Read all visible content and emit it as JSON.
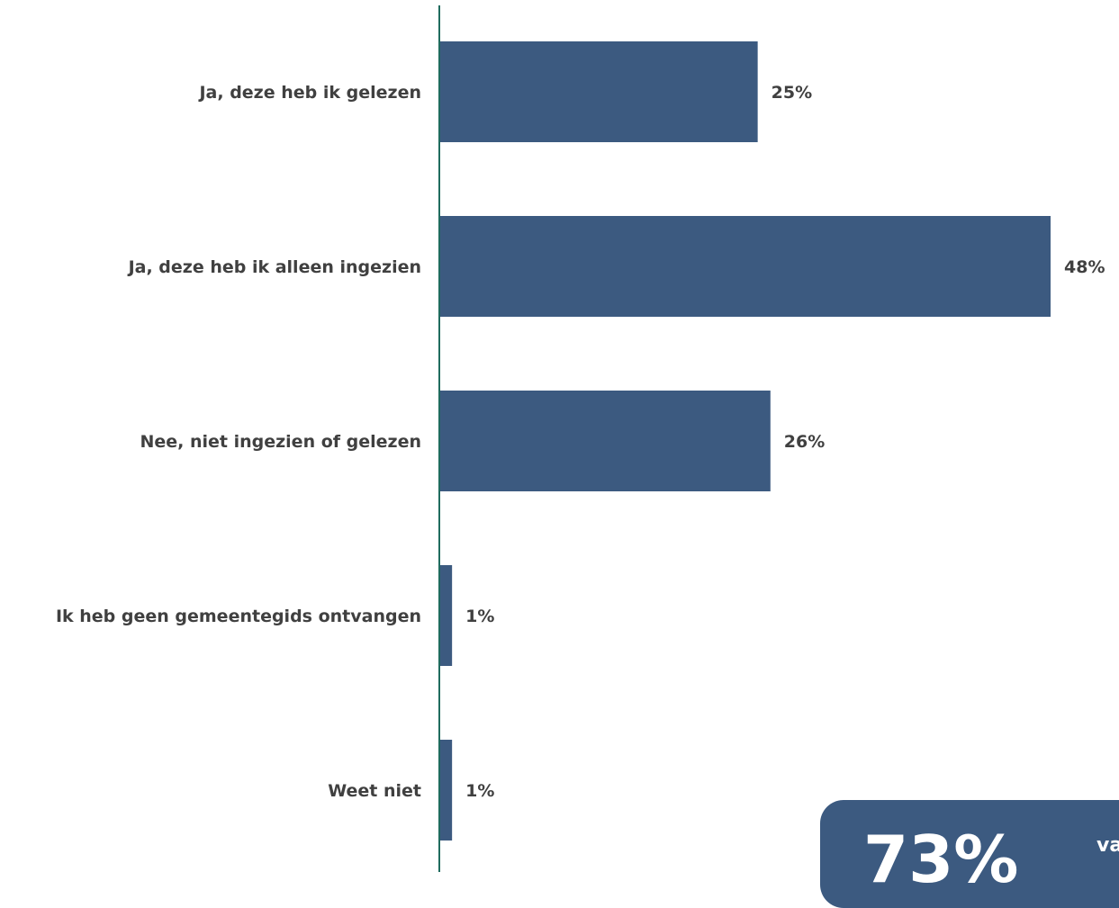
{
  "chart_data": {
    "type": "bar",
    "orientation": "horizontal",
    "categories": [
      "Ja, deze heb ik gelezen",
      "Ja, deze heb ik alleen ingezien",
      "Nee, niet ingezien of gelezen",
      "Ik heb geen gemeentegids ontvangen",
      "Weet niet"
    ],
    "values": [
      25,
      48,
      26,
      1,
      1
    ],
    "value_labels": [
      "25%",
      "48%",
      "26%",
      "1%",
      "1%"
    ],
    "xlim": [
      0,
      48
    ],
    "bar_color": "#3c5a80",
    "axis_color": "#1f6b5e",
    "label_color": "#404040",
    "grid": false,
    "legend": "none"
  },
  "callout": {
    "value": "73%",
    "text": "va",
    "color": "#3c5a80"
  }
}
